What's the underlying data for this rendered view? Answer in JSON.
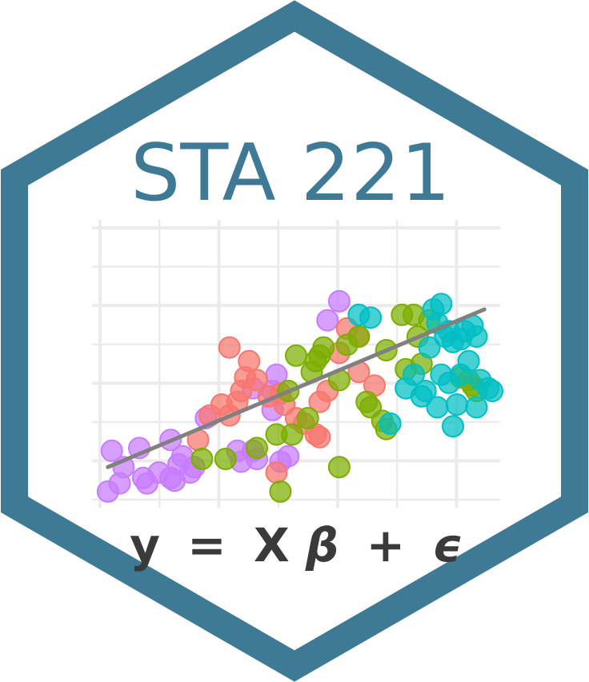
{
  "title": "STA 221",
  "formula": {
    "lhs": "y",
    "eq": "=",
    "x": "X",
    "beta": "β",
    "plus": "+",
    "eps": "ϵ"
  },
  "colors": {
    "hex_border": "#3e7a96",
    "hex_fill": "#ffffff",
    "title": "#3e7a96",
    "formula": "#3a3a3a",
    "grid": "#ebebeb",
    "fit_line": "#808080",
    "group_purple": "#c77cff",
    "group_red": "#f8766d",
    "group_green": "#7cae00",
    "group_cyan": "#00bfc4"
  },
  "chart_data": {
    "type": "scatter",
    "x_range": [
      0,
      10
    ],
    "y_range": [
      0,
      10
    ],
    "grid": true,
    "fit_line": {
      "x": [
        0.2,
        9.8
      ],
      "y": [
        1.2,
        7.0
      ]
    },
    "series": [
      {
        "color_key": "group_purple",
        "points": [
          [
            0.2,
            0.3
          ],
          [
            0.3,
            1.8
          ],
          [
            0.5,
            0.6
          ],
          [
            0.6,
            1.2
          ],
          [
            1.0,
            1.9
          ],
          [
            1.1,
            0.8
          ],
          [
            1.2,
            0.6
          ],
          [
            1.5,
            1.0
          ],
          [
            1.8,
            0.8
          ],
          [
            1.8,
            2.2
          ],
          [
            1.9,
            0.7
          ],
          [
            2.0,
            1.3
          ],
          [
            2.1,
            1.6
          ],
          [
            2.3,
            1.0
          ],
          [
            2.4,
            1.2
          ],
          [
            2.7,
            3.0
          ],
          [
            3.5,
            1.8
          ],
          [
            3.6,
            1.4
          ],
          [
            3.9,
            1.8
          ],
          [
            4.0,
            1.5
          ],
          [
            3.9,
            4.1
          ],
          [
            4.4,
            4.0
          ],
          [
            4.6,
            1.4
          ],
          [
            4.8,
            1.6
          ],
          [
            4.4,
            3.3
          ],
          [
            4.5,
            4.6
          ],
          [
            5.8,
            6.6
          ],
          [
            6.1,
            7.3
          ]
        ]
      },
      {
        "color_key": "group_red",
        "points": [
          [
            2.5,
            2.2
          ],
          [
            2.8,
            3.1
          ],
          [
            3.1,
            3.5
          ],
          [
            3.3,
            3.1
          ],
          [
            3.5,
            3.6
          ],
          [
            3.6,
            4.0
          ],
          [
            3.7,
            4.5
          ],
          [
            3.8,
            5.1
          ],
          [
            3.3,
            5.6
          ],
          [
            4.0,
            4.4
          ],
          [
            4.3,
            3.8
          ],
          [
            4.6,
            3.9
          ],
          [
            4.7,
            3.5
          ],
          [
            5.0,
            3.0
          ],
          [
            5.2,
            2.8
          ],
          [
            5.6,
            3.6
          ],
          [
            5.6,
            2.3
          ],
          [
            5.8,
            4.0
          ],
          [
            6.1,
            5.4
          ],
          [
            6.3,
            6.3
          ],
          [
            6.6,
            6.0
          ],
          [
            6.6,
            4.7
          ],
          [
            7.0,
            4.2
          ],
          [
            4.5,
            1.0
          ],
          [
            5.5,
            2.4
          ]
        ]
      },
      {
        "color_key": "group_green",
        "points": [
          [
            2.6,
            1.5
          ],
          [
            3.2,
            1.5
          ],
          [
            4.0,
            1.9
          ],
          [
            4.5,
            2.4
          ],
          [
            4.6,
            0.3
          ],
          [
            4.8,
            4.0
          ],
          [
            4.9,
            2.4
          ],
          [
            5.0,
            5.3
          ],
          [
            5.3,
            3.0
          ],
          [
            5.4,
            4.7
          ],
          [
            5.5,
            5.1
          ],
          [
            5.6,
            5.3
          ],
          [
            5.7,
            5.6
          ],
          [
            6.1,
            4.4
          ],
          [
            6.1,
            1.2
          ],
          [
            6.3,
            5.7
          ],
          [
            6.6,
            6.0
          ],
          [
            6.8,
            3.6
          ],
          [
            6.9,
            3.4
          ],
          [
            7.2,
            2.9
          ],
          [
            7.3,
            2.6
          ],
          [
            7.3,
            5.5
          ],
          [
            7.7,
            6.8
          ],
          [
            8.0,
            6.8
          ],
          [
            8.1,
            6.0
          ],
          [
            8.4,
            6.6
          ],
          [
            9.2,
            4.5
          ],
          [
            9.4,
            4.4
          ],
          [
            9.5,
            4.2
          ],
          [
            9.6,
            4.0
          ],
          [
            7.8,
            4.8
          ],
          [
            8.2,
            5.0
          ]
        ]
      },
      {
        "color_key": "group_cyan",
        "points": [
          [
            6.6,
            6.8
          ],
          [
            6.9,
            6.7
          ],
          [
            7.4,
            2.8
          ],
          [
            7.8,
            4.1
          ],
          [
            8.0,
            4.6
          ],
          [
            8.2,
            3.8
          ],
          [
            8.3,
            4.0
          ],
          [
            8.4,
            5.6
          ],
          [
            8.5,
            7.0
          ],
          [
            8.6,
            6.5
          ],
          [
            8.7,
            4.6
          ],
          [
            8.7,
            7.2
          ],
          [
            8.8,
            6.0
          ],
          [
            8.9,
            4.3
          ],
          [
            8.9,
            6.2
          ],
          [
            9.0,
            5.8
          ],
          [
            9.1,
            3.5
          ],
          [
            9.2,
            4.6
          ],
          [
            9.2,
            5.9
          ],
          [
            9.3,
            6.2
          ],
          [
            9.4,
            5.1
          ],
          [
            9.5,
            6.4
          ],
          [
            9.6,
            3.4
          ],
          [
            9.7,
            4.4
          ],
          [
            9.9,
            4.1
          ],
          [
            10.0,
            4.0
          ],
          [
            9.0,
            2.7
          ],
          [
            9.6,
            6.0
          ],
          [
            8.6,
            3.4
          ]
        ]
      }
    ]
  }
}
